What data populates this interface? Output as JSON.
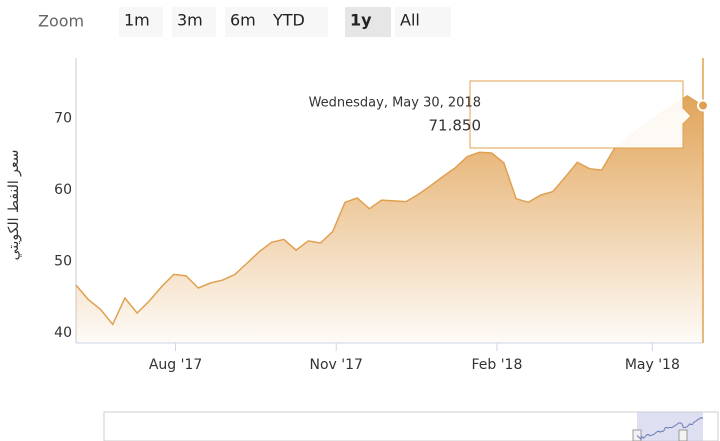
{
  "chart_data": {
    "type": "area",
    "range_selector": {
      "label": "Zoom",
      "buttons": [
        "1m",
        "3m",
        "6m",
        "YTD",
        "1y",
        "All"
      ],
      "selected": 4
    },
    "y_label": "سعر النفط الكويتي",
    "x": [
      "2017-06-05",
      "2017-06-12",
      "2017-06-19",
      "2017-06-26",
      "2017-07-03",
      "2017-07-10",
      "2017-07-17",
      "2017-07-24",
      "2017-07-31",
      "2017-08-07",
      "2017-08-14",
      "2017-08-21",
      "2017-08-28",
      "2017-09-04",
      "2017-09-11",
      "2017-09-18",
      "2017-09-25",
      "2017-10-02",
      "2017-10-09",
      "2017-10-16",
      "2017-10-23",
      "2017-10-30",
      "2017-11-06",
      "2017-11-13",
      "2017-11-20",
      "2017-11-27",
      "2017-12-04",
      "2017-12-11",
      "2017-12-18",
      "2017-12-25",
      "2018-01-01",
      "2018-01-08",
      "2018-01-15",
      "2018-01-22",
      "2018-01-29",
      "2018-02-05",
      "2018-02-12",
      "2018-02-19",
      "2018-02-26",
      "2018-03-05",
      "2018-03-12",
      "2018-03-19",
      "2018-03-26",
      "2018-04-02",
      "2018-04-09",
      "2018-04-16",
      "2018-04-23",
      "2018-04-30",
      "2018-05-07",
      "2018-05-14",
      "2018-05-21",
      "2018-05-28",
      "2018-05-30"
    ],
    "series": [
      {
        "color": "#e0a050",
        "values": [
          46.7,
          44.7,
          43.3,
          41.2,
          44.9,
          42.8,
          44.5,
          46.5,
          48.2,
          48,
          46.3,
          47,
          47.4,
          48.2,
          49.8,
          51.4,
          52.7,
          53.1,
          51.6,
          52.9,
          52.6,
          54.2,
          58.3,
          58.9,
          57.4,
          58.6,
          58.5,
          58.4,
          59.4,
          60.6,
          61.9,
          63.1,
          64.7,
          65.3,
          65.2,
          63.8,
          58.8,
          58.3,
          59.3,
          59.8,
          61.8,
          63.9,
          63,
          62.8,
          65.7,
          67.2,
          68.5,
          69.8,
          71,
          72.1,
          73.2,
          72.1,
          71.85
        ]
      }
    ],
    "xlim": [
      "2017-06-05",
      "2018-05-30"
    ],
    "xticks": [
      {
        "value": "2017-08-01",
        "label": "Aug '17"
      },
      {
        "value": "2017-11-01",
        "label": "Nov '17"
      },
      {
        "value": "2018-02-01",
        "label": "Feb '18"
      },
      {
        "value": "2018-05-01",
        "label": "May '18"
      }
    ],
    "ylim": [
      38.6,
      78.5
    ],
    "yticks": [
      40,
      50,
      60,
      70
    ],
    "tooltip": {
      "header": "Wednesday, May 30, 2018",
      "value": "71.850"
    }
  }
}
